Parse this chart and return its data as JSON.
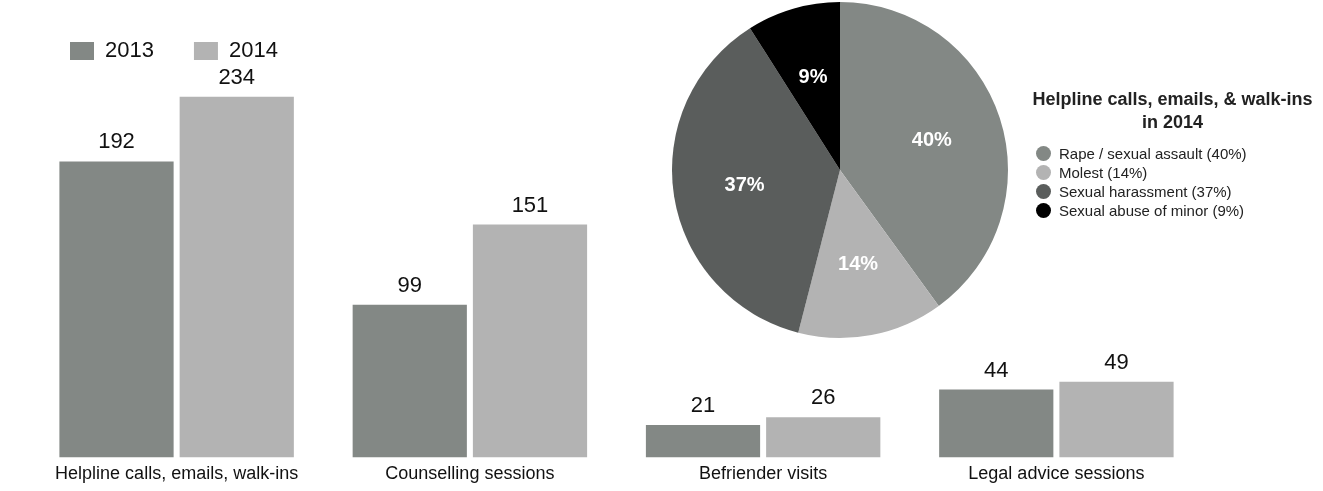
{
  "chart_data": [
    {
      "type": "bar",
      "categories": [
        "Helpline calls, emails, walk-ins",
        "Counselling sessions",
        "Befriender visits",
        "Legal advice sessions"
      ],
      "series": [
        {
          "name": "2013",
          "color": "#838885",
          "values": [
            192,
            99,
            21,
            44
          ]
        },
        {
          "name": "2014",
          "color": "#b3b3b3",
          "values": [
            234,
            151,
            26,
            49
          ]
        }
      ],
      "data_labels": true,
      "legend": "top left",
      "tick_labels": "x",
      "grid": false
    },
    {
      "type": "pie",
      "legend_title": "Helpline calls, emails, & walk-ins in 2014",
      "categories": [
        "Rape / sexual assault (40%)",
        "Molest (14%)",
        "Sexual harassment (37%)",
        "Sexual abuse of minor (9%)"
      ],
      "values": [
        40,
        14,
        37,
        9
      ],
      "colors": [
        "#838885",
        "#b3b3b3",
        "#5a5d5c",
        "#000000"
      ],
      "value_labels": [
        "40%",
        "14%",
        "37%",
        "9%"
      ],
      "legend": "right"
    }
  ]
}
